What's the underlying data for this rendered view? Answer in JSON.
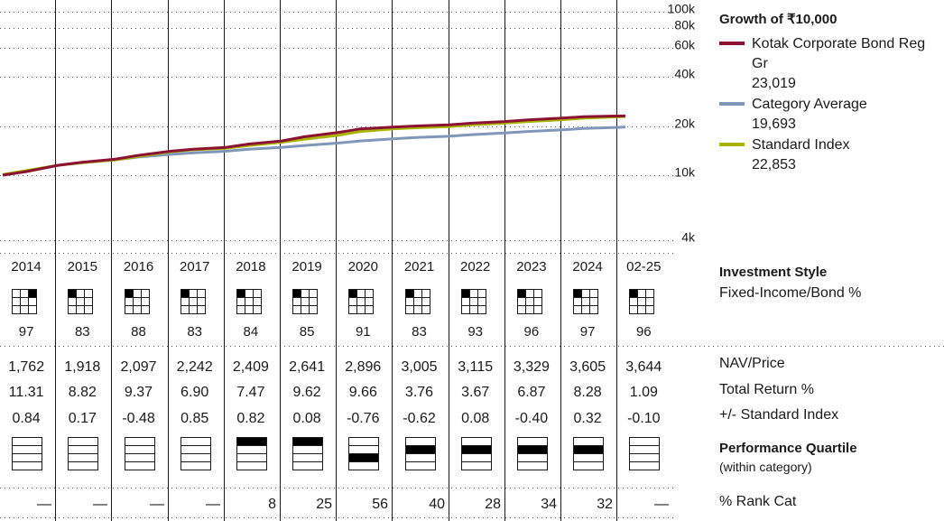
{
  "chart_data": {
    "type": "line",
    "title": "Growth of ₹10,000",
    "y_scale": "log",
    "ylim": [
      4000,
      100000
    ],
    "y_ticks": [
      "100k",
      "80k",
      "60k",
      "40k",
      "20k",
      "10k",
      "4k"
    ],
    "y_tick_values": [
      100000,
      80000,
      60000,
      40000,
      20000,
      10000,
      4000
    ],
    "grid": "dotted horizontal at y ticks, vertical year dividers",
    "x_range": [
      "2014-01",
      "2025-03"
    ],
    "series": [
      {
        "name": "Kotak Corporate Bond Reg Gr",
        "value_label": "23,019",
        "color": "#8b1232",
        "x": [
          "2014-01",
          "2014-06",
          "2015-01",
          "2015-06",
          "2016-01",
          "2016-06",
          "2017-01",
          "2017-06",
          "2018-01",
          "2018-06",
          "2019-01",
          "2019-06",
          "2020-01",
          "2020-06",
          "2021-01",
          "2021-06",
          "2022-01",
          "2022-06",
          "2023-01",
          "2023-06",
          "2024-01",
          "2024-06",
          "2025-01",
          "2025-03"
        ],
        "values": [
          10000,
          10500,
          11500,
          12000,
          12500,
          13200,
          14000,
          14400,
          14800,
          15500,
          16200,
          17200,
          18200,
          19200,
          19700,
          20000,
          20300,
          20800,
          21300,
          21800,
          22300,
          22800,
          23000,
          23019
        ]
      },
      {
        "name": "Category Average",
        "value_label": "19,693",
        "color": "#7f97b8",
        "x": [
          "2014-01",
          "2014-06",
          "2015-01",
          "2015-06",
          "2016-01",
          "2016-06",
          "2017-01",
          "2017-06",
          "2018-01",
          "2018-06",
          "2019-01",
          "2019-06",
          "2020-01",
          "2020-06",
          "2021-01",
          "2021-06",
          "2022-01",
          "2022-06",
          "2023-01",
          "2023-06",
          "2024-01",
          "2024-06",
          "2025-01",
          "2025-03"
        ],
        "values": [
          10050,
          10600,
          11500,
          11900,
          12400,
          12900,
          13400,
          13700,
          14000,
          14400,
          14800,
          15200,
          15700,
          16200,
          16700,
          17000,
          17300,
          17700,
          18100,
          18500,
          18900,
          19300,
          19600,
          19693
        ]
      },
      {
        "name": "Standard Index",
        "value_label": "22,853",
        "color": "#a8b400",
        "x": [
          "2014-01",
          "2014-06",
          "2015-01",
          "2015-06",
          "2016-01",
          "2016-06",
          "2017-01",
          "2017-06",
          "2018-01",
          "2018-06",
          "2019-01",
          "2019-06",
          "2020-01",
          "2020-06",
          "2021-01",
          "2021-06",
          "2022-01",
          "2022-06",
          "2023-01",
          "2023-06",
          "2024-01",
          "2024-06",
          "2025-01",
          "2025-03"
        ],
        "values": [
          10100,
          10650,
          11500,
          11900,
          12400,
          13000,
          13900,
          14300,
          14600,
          15200,
          15900,
          16600,
          17500,
          18500,
          19200,
          19500,
          19800,
          20300,
          20800,
          21300,
          21800,
          22300,
          22700,
          22853
        ]
      }
    ],
    "years": [
      "2014",
      "2015",
      "2016",
      "2017",
      "2018",
      "2019",
      "2020",
      "2021",
      "2022",
      "2023",
      "2024",
      "02-25"
    ],
    "style_box_cell": [
      3,
      1,
      1,
      1,
      1,
      1,
      1,
      1,
      1,
      1,
      1,
      1
    ],
    "style_values": [
      "97",
      "83",
      "88",
      "83",
      "84",
      "85",
      "91",
      "83",
      "93",
      "96",
      "97",
      "96"
    ],
    "nav_price": [
      "1,762",
      "1,918",
      "2,097",
      "2,242",
      "2,409",
      "2,641",
      "2,896",
      "3,005",
      "3,115",
      "3,329",
      "3,605",
      "3,644"
    ],
    "total_return": [
      "11.31",
      "8.82",
      "9.37",
      "6.90",
      "7.47",
      "9.62",
      "9.66",
      "3.76",
      "3.67",
      "6.87",
      "8.28",
      "1.09"
    ],
    "vs_index": [
      "0.84",
      "0.17",
      "-0.48",
      "0.85",
      "0.82",
      "0.08",
      "-0.76",
      "-0.62",
      "0.08",
      "-0.40",
      "0.32",
      "-0.10"
    ],
    "quartile": [
      0,
      0,
      0,
      0,
      1,
      1,
      3,
      2,
      2,
      2,
      2,
      0
    ],
    "rank_cat": [
      "—",
      "—",
      "—",
      "—",
      "8",
      "25",
      "56",
      "40",
      "28",
      "34",
      "32",
      "—"
    ]
  },
  "labels": {
    "growth_title": "Growth of ₹10,000",
    "investment_style": "Investment Style",
    "investment_style_value": "Fixed-Income/Bond %",
    "nav_price": "NAV/Price",
    "total_return": "Total Return %",
    "vs_index": "+/- Standard Index",
    "performance_quartile": "Performance Quartile",
    "within_category": "(within category)",
    "rank_cat": "% Rank Cat"
  },
  "legend": [
    {
      "name": "Kotak Corporate Bond Reg Gr",
      "value": "23,019",
      "color": "#8b1232"
    },
    {
      "name": "Category Average",
      "value": "19,693",
      "color": "#7f97b8"
    },
    {
      "name": "Standard Index",
      "value": "22,853",
      "color": "#a8b400"
    }
  ]
}
